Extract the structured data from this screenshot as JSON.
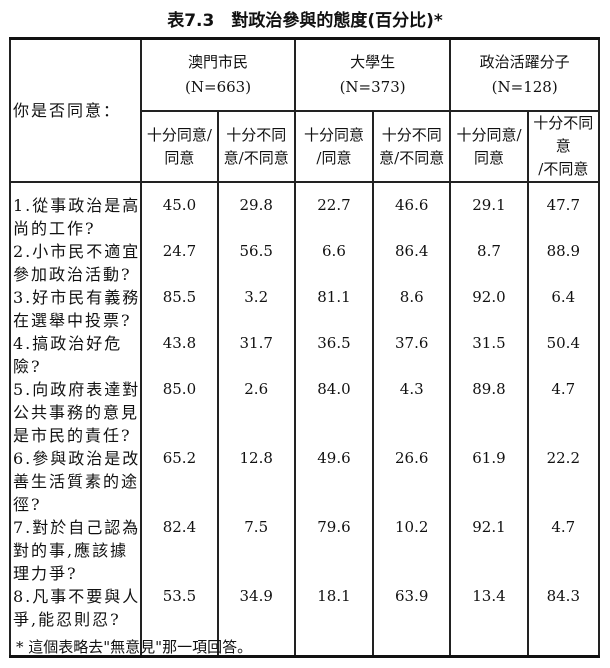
{
  "title": "表7.3　對政治參與的態度(百分比)*",
  "header": {
    "question_label": "你是否同意：",
    "groups": [
      {
        "name": "澳門市民",
        "n": "(N=663)"
      },
      {
        "name": "大學生",
        "n": "(N=373)"
      },
      {
        "name": "政治活躍分子",
        "n": "(N=128)"
      }
    ],
    "subcolumns": [
      [
        "十分同意/",
        "同意"
      ],
      [
        "十分不同",
        "意/不同意"
      ],
      [
        "十分同意",
        "/同意"
      ],
      [
        "十分不同",
        "意/不同意"
      ],
      [
        "十分同意/",
        "同意"
      ],
      [
        "十分不同意",
        "/不同意"
      ]
    ]
  },
  "rows": [
    {
      "q": [
        "1.從事政治是高",
        "尚的工作?"
      ],
      "v": [
        "45.0",
        "29.8",
        "22.7",
        "46.6",
        "29.1",
        "47.7"
      ]
    },
    {
      "q": [
        "2.小市民不適宜",
        "參加政治活動?"
      ],
      "v": [
        "24.7",
        "56.5",
        "6.6",
        "86.4",
        "8.7",
        "88.9"
      ]
    },
    {
      "q": [
        "3.好市民有義務",
        "在選舉中投票?"
      ],
      "v": [
        "85.5",
        "3.2",
        "81.1",
        "8.6",
        "92.0",
        "6.4"
      ]
    },
    {
      "q": [
        "4.搞政治好危",
        "險?"
      ],
      "v": [
        "43.8",
        "31.7",
        "36.5",
        "37.6",
        "31.5",
        "50.4"
      ]
    },
    {
      "q": [
        "5.向政府表達對",
        "公共事務的意見",
        "是市民的責任?"
      ],
      "v": [
        "85.0",
        "2.6",
        "84.0",
        "4.3",
        "89.8",
        "4.7"
      ]
    },
    {
      "q": [
        "6.參與政治是改",
        "善生活質素的途",
        "徑?"
      ],
      "v": [
        "65.2",
        "12.8",
        "49.6",
        "26.6",
        "61.9",
        "22.2"
      ]
    },
    {
      "q": [
        "7.對於自己認為",
        "對的事,應該據",
        "理力爭?"
      ],
      "v": [
        "82.4",
        "7.5",
        "79.6",
        "10.2",
        "92.1",
        "4.7"
      ]
    },
    {
      "q": [
        "8.凡事不要與人",
        "爭,能忍則忍?"
      ],
      "v": [
        "53.5",
        "34.9",
        "18.1",
        "63.9",
        "13.4",
        "84.3"
      ]
    }
  ],
  "footnote": "* 這個表略去\"無意見\"那一項回答。"
}
